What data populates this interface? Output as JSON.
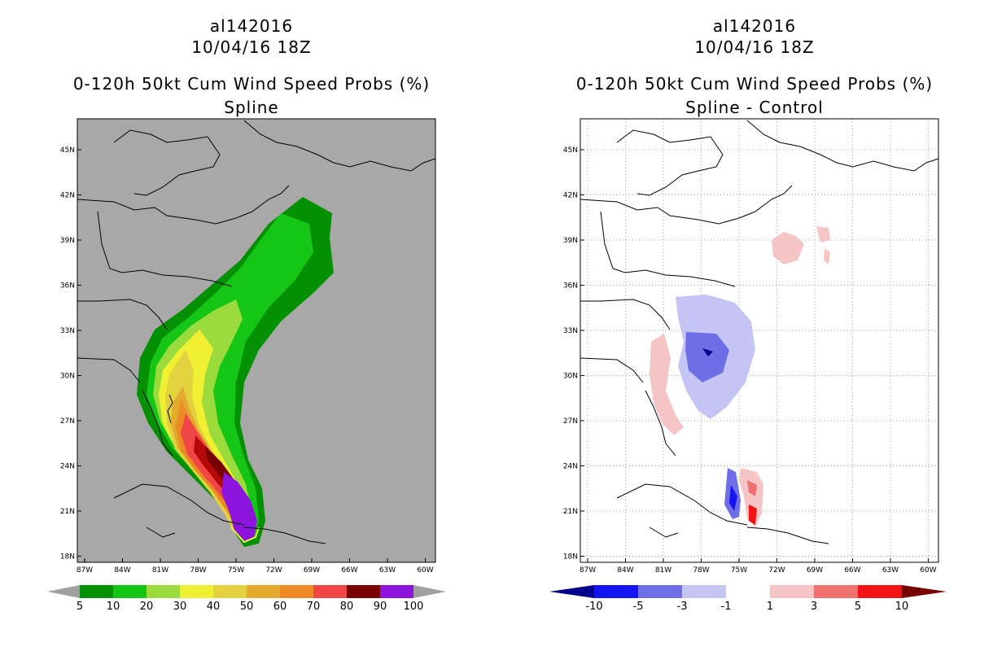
{
  "left_panel": {
    "storm_id": "al142016",
    "datetime": "10/04/16 18Z",
    "product": "0-120h 50kt Cum Wind Speed Probs (%)",
    "subtitle": "Spline",
    "lat_labels": [
      "45N",
      "42N",
      "39N",
      "36N",
      "33N",
      "30N",
      "27N",
      "24N",
      "21N",
      "18N"
    ],
    "lon_labels": [
      "87W",
      "84W",
      "81W",
      "78W",
      "75W",
      "72W",
      "69W",
      "66W",
      "63W",
      "60W"
    ],
    "colorbar": {
      "labels": [
        "5",
        "10",
        "20",
        "30",
        "40",
        "50",
        "60",
        "70",
        "80",
        "90",
        "100"
      ],
      "colors": [
        "#039103",
        "#16c616",
        "#9bdc3c",
        "#f0f033",
        "#e3d23d",
        "#e3aa2d",
        "#ec8a26",
        "#f04646",
        "#b40a0a",
        "#780000",
        "#8c14dc"
      ],
      "arrow_color": "#a0a0a0"
    },
    "land_color": "#a8a8a8",
    "ocean_color": "#a8a8a8"
  },
  "right_panel": {
    "storm_id": "al142016",
    "datetime": "10/04/16 18Z",
    "product": "0-120h 50kt Cum Wind Speed Probs (%)",
    "subtitle": "Spline - Control",
    "lat_labels": [
      "45N",
      "42N",
      "39N",
      "36N",
      "33N",
      "30N",
      "27N",
      "24N",
      "21N",
      "18N"
    ],
    "lon_labels": [
      "87W",
      "84W",
      "81W",
      "78W",
      "75W",
      "72W",
      "69W",
      "66W",
      "63W",
      "60W"
    ],
    "colorbar": {
      "labels": [
        "-10",
        "-5",
        "-3",
        "-1",
        "1",
        "3",
        "5",
        "10"
      ],
      "colors": [
        "#00008c",
        "#1414f0",
        "#6e6ee6",
        "#c4c4f5",
        "#ffffff",
        "#f5c4c4",
        "#f07070",
        "#f01414",
        "#780000"
      ]
    }
  }
}
